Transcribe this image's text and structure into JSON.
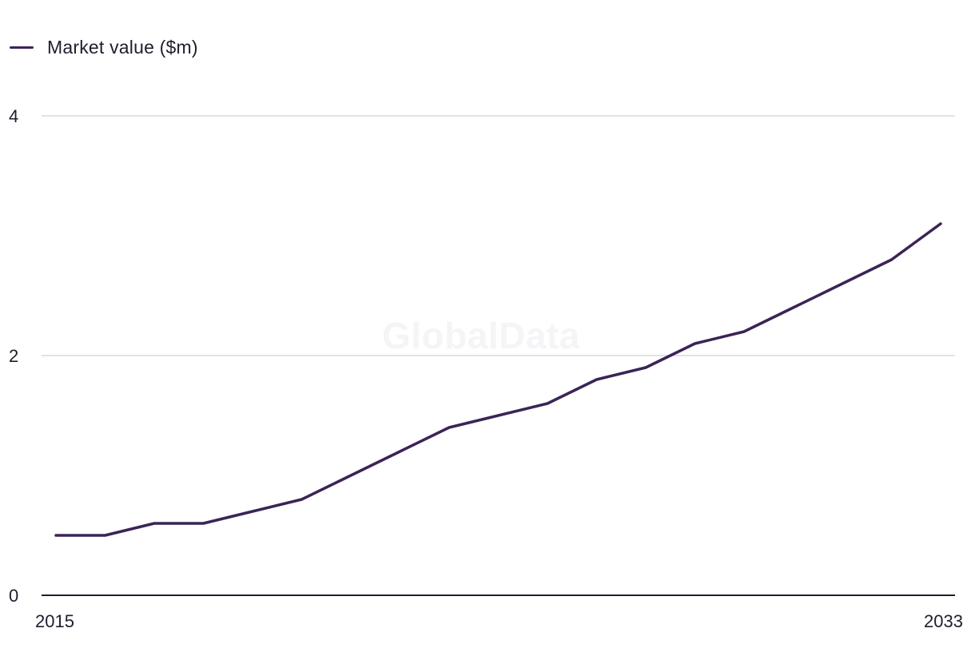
{
  "watermark": "GlobalData",
  "chart_data": {
    "type": "line",
    "title": "",
    "xlabel": "",
    "ylabel": "",
    "x": [
      2015,
      2016,
      2017,
      2018,
      2019,
      2020,
      2021,
      2022,
      2023,
      2024,
      2025,
      2026,
      2027,
      2028,
      2029,
      2030,
      2031,
      2032,
      2033
    ],
    "series": [
      {
        "name": "Market value ($m)",
        "color": "#3b2456",
        "values": [
          0.5,
          0.5,
          0.6,
          0.6,
          0.7,
          0.8,
          1.0,
          1.2,
          1.4,
          1.5,
          1.6,
          1.8,
          1.9,
          2.1,
          2.2,
          2.4,
          2.6,
          2.8,
          3.1
        ]
      }
    ],
    "xlim": [
      2015,
      2033
    ],
    "ylim": [
      0,
      4
    ],
    "y_ticks": [
      "0",
      "2",
      "4"
    ],
    "x_tick_labels": [
      "2015",
      "2033"
    ],
    "grid": true,
    "legend_position": "top-left",
    "colors": {
      "line": "#3b2456",
      "grid": "#d8d8dc",
      "axis": "#1e1e2e"
    }
  }
}
